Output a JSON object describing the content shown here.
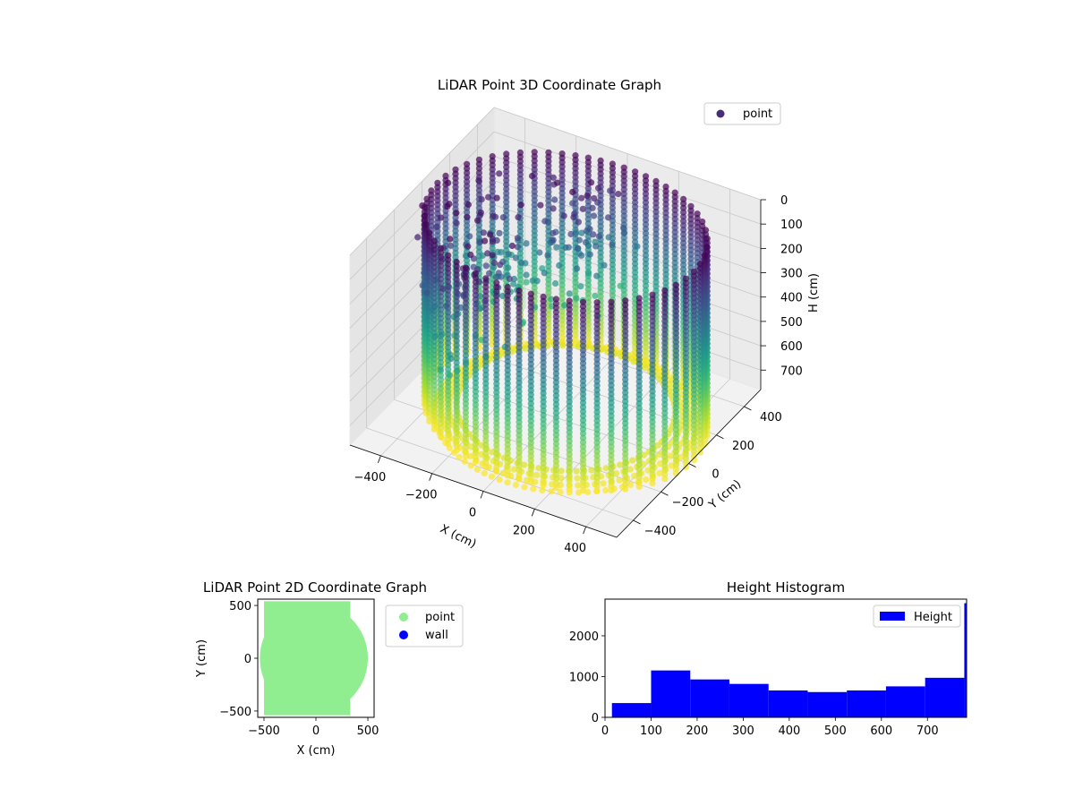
{
  "chart_data": [
    {
      "type": "scatter",
      "projection": "3d",
      "title": "LiDAR Point 3D Coordinate Graph",
      "xlabel": "X (cm)",
      "ylabel": "Y (cm)",
      "zlabel": "H (cm)",
      "xticks": [
        "−400",
        "−200",
        "0",
        "200",
        "400"
      ],
      "yticks": [
        "−400",
        "−200",
        "0",
        "200",
        "400"
      ],
      "zticks": [
        "0",
        "100",
        "200",
        "300",
        "400",
        "500",
        "600",
        "700"
      ],
      "xlim": [
        -520,
        520
      ],
      "ylim": [
        -520,
        520
      ],
      "zlim": [
        0,
        780
      ],
      "z_inverted": true,
      "colormap": "viridis",
      "grid": true,
      "legend": {
        "position": "top-right",
        "entries": [
          {
            "label": "point",
            "color": "#472c7a"
          }
        ]
      },
      "series": [
        {
          "name": "point",
          "description_shape": "cylindrical wall of vertical scan columns, radius ~500 cm, height 0–780 cm",
          "radius": 500,
          "columns": 60,
          "height_range": [
            0,
            780
          ]
        }
      ]
    },
    {
      "type": "scatter",
      "title": "LiDAR Point 2D Coordinate Graph",
      "xlabel": "X (cm)",
      "ylabel": "Y (cm)",
      "xticks": [
        "−500",
        "0",
        "500"
      ],
      "yticks": [
        "500",
        "0",
        "−500"
      ],
      "xlim": [
        -560,
        560
      ],
      "ylim": [
        -560,
        560
      ],
      "legend": {
        "position": "outside-right",
        "entries": [
          {
            "label": "point",
            "color": "#90ee90"
          },
          {
            "label": "wall",
            "color": "#0000ff"
          }
        ]
      },
      "series": [
        {
          "name": "point",
          "color": "#90ee90",
          "shape": "filled disc, radius ~520 cm"
        }
      ]
    },
    {
      "type": "bar",
      "subtype": "histogram",
      "title": "Height Histogram",
      "xlabel": "",
      "ylabel": "",
      "xticks": [
        "0",
        "100",
        "200",
        "300",
        "400",
        "500",
        "600",
        "700"
      ],
      "yticks": [
        "0",
        "1000",
        "2000"
      ],
      "xlim": [
        0,
        785
      ],
      "ylim": [
        0,
        2900
      ],
      "legend": {
        "position": "top-right",
        "entries": [
          {
            "label": "Height",
            "color": "#0000ff"
          }
        ]
      },
      "series": [
        {
          "name": "Height",
          "color": "#0000ff",
          "bin_edges": [
            15,
            100,
            185,
            270,
            355,
            440,
            525,
            610,
            695,
            780,
            785
          ],
          "counts": [
            350,
            1150,
            930,
            820,
            660,
            620,
            660,
            760,
            970,
            2800
          ]
        }
      ]
    }
  ]
}
